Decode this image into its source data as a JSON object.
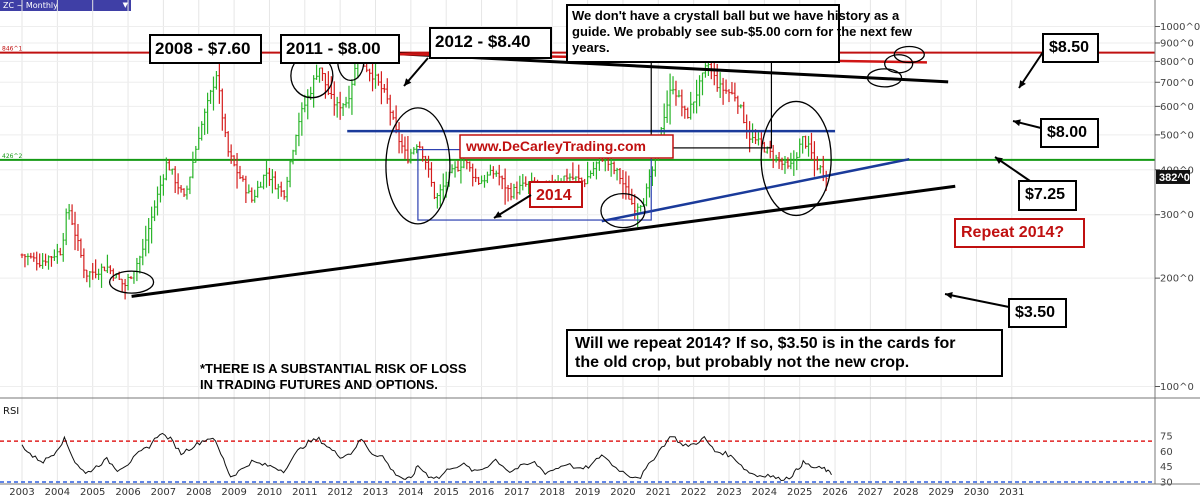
{
  "chart_data": [
    {
      "type": "candlestick",
      "symbol": "ZC ~ Monthly",
      "x_axis_years": [
        "2003",
        "2004",
        "2005",
        "2006",
        "2007",
        "2008",
        "2009",
        "2010",
        "2011",
        "2012",
        "2013",
        "2014",
        "2015",
        "2016",
        "2017",
        "2018",
        "2019",
        "2020",
        "2021",
        "2022",
        "2023",
        "2024",
        "2025",
        "2026",
        "2027",
        "2028",
        "2029",
        "2030",
        "2031"
      ],
      "y_ticks": [
        "1000^0",
        "900^0",
        "800^0",
        "700^0",
        "600^0",
        "500^0",
        "400^0",
        "300^0",
        "200^0",
        "100^0"
      ],
      "ylim": [
        62,
        1080
      ],
      "log_scale": true,
      "price_path": [
        [
          2003.0,
          232
        ],
        [
          2003.5,
          222
        ],
        [
          2004.1,
          238
        ],
        [
          2004.3,
          318
        ],
        [
          2004.8,
          205
        ],
        [
          2005.4,
          215
        ],
        [
          2005.9,
          190
        ],
        [
          2006.4,
          235
        ],
        [
          2006.8,
          330
        ],
        [
          2007.1,
          420
        ],
        [
          2007.6,
          330
        ],
        [
          2008.0,
          500
        ],
        [
          2008.5,
          740
        ],
        [
          2008.8,
          455
        ],
        [
          2009.0,
          410
        ],
        [
          2009.5,
          330
        ],
        [
          2009.9,
          395
        ],
        [
          2010.4,
          340
        ],
        [
          2010.8,
          540
        ],
        [
          2011.2,
          680
        ],
        [
          2011.4,
          780
        ],
        [
          2011.7,
          640
        ],
        [
          2011.9,
          600
        ],
        [
          2012.2,
          620
        ],
        [
          2012.5,
          820
        ],
        [
          2012.9,
          740
        ],
        [
          2013.3,
          640
        ],
        [
          2013.6,
          500
        ],
        [
          2013.9,
          430
        ],
        [
          2014.2,
          480
        ],
        [
          2014.4,
          430
        ],
        [
          2014.7,
          330
        ],
        [
          2015.1,
          385
        ],
        [
          2015.5,
          425
        ],
        [
          2015.9,
          370
        ],
        [
          2016.4,
          395
        ],
        [
          2016.8,
          345
        ],
        [
          2017.3,
          365
        ],
        [
          2017.8,
          355
        ],
        [
          2018.4,
          385
        ],
        [
          2018.9,
          370
        ],
        [
          2019.4,
          435
        ],
        [
          2019.9,
          385
        ],
        [
          2020.3,
          315
        ],
        [
          2020.6,
          330
        ],
        [
          2020.9,
          420
        ],
        [
          2021.1,
          540
        ],
        [
          2021.4,
          690
        ],
        [
          2021.8,
          560
        ],
        [
          2022.1,
          660
        ],
        [
          2022.4,
          790
        ],
        [
          2022.7,
          680
        ],
        [
          2023.2,
          640
        ],
        [
          2023.6,
          490
        ],
        [
          2023.9,
          470
        ],
        [
          2024.3,
          430
        ],
        [
          2024.7,
          400
        ],
        [
          2024.9,
          440
        ],
        [
          2025.1,
          490
        ],
        [
          2025.5,
          410
        ],
        [
          2025.8,
          385
        ]
      ],
      "last_price_label": "382^0",
      "horizontal_levels": [
        {
          "label": "846^1",
          "value": 846,
          "color": "#c01010"
        },
        {
          "label": "426^2",
          "value": 426,
          "color": "#159a15"
        },
        {
          "value": 512,
          "color": "#1a3a9a"
        }
      ],
      "annotations": {
        "high_2008": "2008 - $7.60",
        "high_2011": "2011 - $8.00",
        "high_2012": "2012 - $8.40",
        "year_2014": "2014",
        "website": "www.DeCarleyTrading.com",
        "history_note": [
          "We don't have a crystall ball but we have history as a",
          "guide. We probably see sub-$5.00 corn for the next few",
          "years."
        ],
        "repeat_2014": "Repeat 2014?",
        "target_850": "$8.50",
        "target_800": "$8.00",
        "target_725": "$7.25",
        "target_350": "$3.50",
        "question": [
          "Will we repeat 2014? If so, $3.50 is in the cards for",
          "the old crop, but probably not the new crop."
        ],
        "disclaimer": [
          "*THERE IS A SUBSTANTIAL RISK OF LOSS",
          "IN TRADING FUTURES AND OPTIONS."
        ]
      }
    },
    {
      "type": "line",
      "title": "RSI",
      "y_ticks": [
        "75",
        "60",
        "45",
        "30"
      ],
      "ylim": [
        20,
        85
      ],
      "levels": [
        {
          "value": 70,
          "color": "#e02020"
        },
        {
          "value": 30,
          "color": "#2f5fe0"
        }
      ],
      "values": [
        [
          2003.0,
          66
        ],
        [
          2003.3,
          55
        ],
        [
          2003.6,
          50
        ],
        [
          2003.9,
          58
        ],
        [
          2004.2,
          72
        ],
        [
          2004.5,
          50
        ],
        [
          2004.8,
          38
        ],
        [
          2005.1,
          45
        ],
        [
          2005.4,
          52
        ],
        [
          2005.7,
          42
        ],
        [
          2006.0,
          48
        ],
        [
          2006.3,
          58
        ],
        [
          2006.6,
          65
        ],
        [
          2006.9,
          78
        ],
        [
          2007.2,
          72
        ],
        [
          2007.5,
          58
        ],
        [
          2007.8,
          64
        ],
        [
          2008.1,
          70
        ],
        [
          2008.4,
          74
        ],
        [
          2008.7,
          52
        ],
        [
          2008.9,
          35
        ],
        [
          2009.2,
          42
        ],
        [
          2009.5,
          50
        ],
        [
          2009.8,
          47
        ],
        [
          2010.1,
          45
        ],
        [
          2010.4,
          41
        ],
        [
          2010.8,
          60
        ],
        [
          2011.1,
          69
        ],
        [
          2011.4,
          72
        ],
        [
          2011.7,
          63
        ],
        [
          2012.0,
          55
        ],
        [
          2012.3,
          58
        ],
        [
          2012.6,
          72
        ],
        [
          2012.9,
          58
        ],
        [
          2013.2,
          55
        ],
        [
          2013.5,
          40
        ],
        [
          2013.8,
          33
        ],
        [
          2014.0,
          33
        ],
        [
          2014.2,
          46
        ],
        [
          2014.5,
          36
        ],
        [
          2014.8,
          34
        ],
        [
          2015.1,
          44
        ],
        [
          2015.5,
          47
        ],
        [
          2015.8,
          40
        ],
        [
          2016.1,
          44
        ],
        [
          2016.4,
          52
        ],
        [
          2016.8,
          40
        ],
        [
          2017.1,
          45
        ],
        [
          2017.5,
          49
        ],
        [
          2017.8,
          39
        ],
        [
          2018.1,
          43
        ],
        [
          2018.4,
          48
        ],
        [
          2018.8,
          42
        ],
        [
          2019.1,
          46
        ],
        [
          2019.4,
          57
        ],
        [
          2019.8,
          44
        ],
        [
          2020.2,
          36
        ],
        [
          2020.5,
          35
        ],
        [
          2020.8,
          50
        ],
        [
          2021.1,
          64
        ],
        [
          2021.4,
          76
        ],
        [
          2021.7,
          65
        ],
        [
          2022.0,
          67
        ],
        [
          2022.3,
          73
        ],
        [
          2022.6,
          60
        ],
        [
          2022.9,
          58
        ],
        [
          2023.2,
          52
        ],
        [
          2023.5,
          41
        ],
        [
          2023.8,
          36
        ],
        [
          2024.1,
          37
        ],
        [
          2024.4,
          33
        ],
        [
          2024.7,
          34
        ],
        [
          2024.9,
          41
        ],
        [
          2025.1,
          49
        ],
        [
          2025.4,
          44
        ],
        [
          2025.7,
          43
        ],
        [
          2025.9,
          37
        ]
      ]
    }
  ]
}
